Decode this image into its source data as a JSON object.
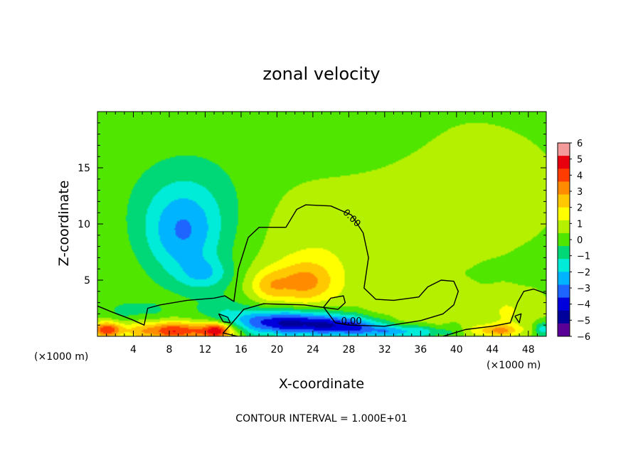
{
  "chart_data": {
    "type": "heatmap",
    "title": "zonal velocity",
    "xlabel": "X-coordinate",
    "ylabel": "Z-coordinate",
    "x_units": "(×1000 m)",
    "z_units": "(×1000 m)",
    "xlim": [
      0,
      50
    ],
    "ylim": [
      0,
      20
    ],
    "x_ticks": [
      "4",
      "8",
      "12",
      "16",
      "20",
      "24",
      "28",
      "32",
      "36",
      "40",
      "44",
      "48"
    ],
    "x_tick_values": [
      4,
      8,
      12,
      16,
      20,
      24,
      28,
      32,
      36,
      40,
      44,
      48
    ],
    "y_ticks": [
      "5",
      "10",
      "15"
    ],
    "y_tick_values": [
      5,
      10,
      15
    ],
    "colorbar": {
      "labels": [
        "6",
        "5",
        "4",
        "3",
        "2",
        "1",
        "0",
        "−1",
        "−2",
        "−3",
        "−4",
        "−5",
        "−6"
      ],
      "values": [
        6,
        5,
        4,
        3,
        2,
        1,
        0,
        -1,
        -2,
        -3,
        -4,
        -5,
        -6
      ],
      "colors": [
        "#f49a9a",
        "#e8000e",
        "#ff3c00",
        "#ff8c00",
        "#ffc800",
        "#ffff00",
        "#b4f000",
        "#50e600",
        "#00d878",
        "#00ecd8",
        "#00b4ff",
        "#1e64ff",
        "#0000dc",
        "#00009a",
        "#5a0096"
      ]
    },
    "contour_labels": [
      "0.00",
      "0.00"
    ],
    "contour_interval_text": "CONTOUR INTERVAL = 1.000E+01",
    "field": {
      "background": 0.2,
      "features": [
        {
          "x": 9.5,
          "z": 9.0,
          "sx": 3.0,
          "sz": 2.8,
          "amp": -2.4
        },
        {
          "x": 12.0,
          "z": 5.5,
          "sx": 2.0,
          "sz": 1.0,
          "amp": -1.6
        },
        {
          "x": 10.0,
          "z": 12.0,
          "sx": 5.0,
          "sz": 3.5,
          "amp": -1.0
        },
        {
          "x": 23.0,
          "z": 4.8,
          "sx": 2.5,
          "sz": 1.4,
          "amp": 2.5
        },
        {
          "x": 19.0,
          "z": 4.5,
          "sx": 1.5,
          "sz": 1.0,
          "amp": 1.6
        },
        {
          "x": 25.0,
          "z": 8.0,
          "sx": 5.0,
          "sz": 3.5,
          "amp": 0.7
        },
        {
          "x": 35.0,
          "z": 2.5,
          "sx": 4.0,
          "sz": 1.5,
          "amp": 0.8
        },
        {
          "x": 46.0,
          "z": 2.2,
          "sx": 2.5,
          "sz": 1.2,
          "amp": 1.0
        },
        {
          "x": 38.0,
          "z": 13.0,
          "sx": 10.0,
          "sz": 5.0,
          "amp": 0.5
        },
        {
          "x": 21.0,
          "z": 1.2,
          "sx": 4.5,
          "sz": 0.8,
          "amp": -4.8
        },
        {
          "x": 28.0,
          "z": 0.9,
          "sx": 3.0,
          "sz": 0.6,
          "amp": -3.0
        },
        {
          "x": 34.0,
          "z": 0.4,
          "sx": 3.5,
          "sz": 0.4,
          "amp": -2.5
        },
        {
          "x": 9.0,
          "z": 0.5,
          "sx": 4.0,
          "sz": 0.6,
          "amp": 4.2
        },
        {
          "x": 1.0,
          "z": 0.6,
          "sx": 1.2,
          "sz": 0.5,
          "amp": 3.5
        },
        {
          "x": 13.5,
          "z": 0.5,
          "sx": 1.0,
          "sz": 0.5,
          "amp": 3.5
        },
        {
          "x": 44.5,
          "z": 0.5,
          "sx": 2.0,
          "sz": 0.4,
          "amp": 2.5
        },
        {
          "x": 49.5,
          "z": 0.6,
          "sx": 0.7,
          "sz": 0.5,
          "amp": -2.0
        },
        {
          "x": 4.0,
          "z": 2.2,
          "sx": 3.0,
          "sz": 0.8,
          "amp": -0.8
        },
        {
          "x": 14.0,
          "z": 2.5,
          "sx": 2.0,
          "sz": 0.8,
          "amp": -0.8
        },
        {
          "x": 27.0,
          "z": 18.0,
          "sx": 6.0,
          "sz": 2.5,
          "amp": -0.6
        }
      ],
      "zero_contour": [
        [
          0,
          2.7
        ],
        [
          1.5,
          2.2
        ],
        [
          3.8,
          1.5
        ],
        [
          5.2,
          1.0
        ],
        [
          5.6,
          2.5
        ],
        [
          7,
          2.8
        ],
        [
          10,
          3.2
        ],
        [
          13,
          3.4
        ],
        [
          14.2,
          3.6
        ],
        [
          15.2,
          3.1
        ],
        [
          15.7,
          6.0
        ],
        [
          16.8,
          8.8
        ],
        [
          18,
          9.7
        ],
        [
          21,
          9.7
        ],
        [
          22.2,
          11.3
        ],
        [
          23.2,
          11.7
        ],
        [
          26,
          11.6
        ],
        [
          28.3,
          10.8
        ],
        [
          29.6,
          9.2
        ],
        [
          30.2,
          7.0
        ],
        [
          29.7,
          4.3
        ],
        [
          31,
          3.3
        ],
        [
          33,
          3.2
        ],
        [
          35.8,
          3.5
        ],
        [
          36.8,
          4.4
        ],
        [
          38.3,
          5.0
        ],
        [
          39.7,
          4.9
        ],
        [
          40.2,
          4.0
        ],
        [
          39.7,
          2.8
        ],
        [
          38.5,
          2.0
        ],
        [
          36,
          1.4
        ],
        [
          32,
          0.9
        ],
        [
          28,
          1.0
        ],
        [
          26.5,
          1.2
        ],
        [
          25.2,
          2.6
        ],
        [
          26,
          3.4
        ],
        [
          27.4,
          3.6
        ],
        [
          27.6,
          3.0
        ],
        [
          26.8,
          2.4
        ],
        [
          23,
          2.8
        ],
        [
          18.5,
          2.9
        ],
        [
          16.3,
          2.4
        ],
        [
          14.8,
          1.0
        ],
        [
          14.0,
          0.3
        ],
        [
          15.6,
          0.0
        ]
      ],
      "zero_contour_right": [
        [
          38.5,
          0
        ],
        [
          41,
          0.6
        ],
        [
          44,
          0.9
        ],
        [
          46,
          1.2
        ],
        [
          46.8,
          3.0
        ],
        [
          47.5,
          4.0
        ],
        [
          48.6,
          4.2
        ],
        [
          50,
          3.8
        ]
      ],
      "zero_contour_islands": [
        [
          [
            13.5,
            2.0
          ],
          [
            14.5,
            1.7
          ],
          [
            14.8,
            1.2
          ],
          [
            14.0,
            1.3
          ],
          [
            13.5,
            2.0
          ]
        ],
        [
          [
            46.5,
            1.8
          ],
          [
            47.2,
            2.0
          ],
          [
            47.0,
            1.2
          ],
          [
            46.5,
            1.8
          ]
        ]
      ],
      "contour_label_positions": [
        [
          28.3,
          10.5
        ],
        [
          28.3,
          1.3
        ]
      ],
      "contour_label_angles": [
        45,
        0
      ]
    }
  }
}
